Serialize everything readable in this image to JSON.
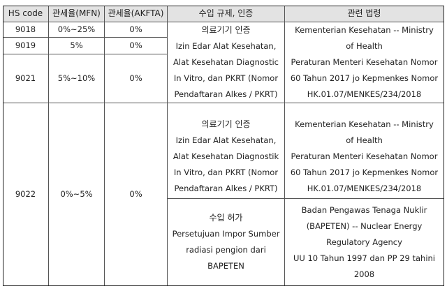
{
  "headers": [
    "HS code",
    "관세율(MFN)",
    "관세율(AKFTA)",
    "수입 규제, 인증",
    "관련 법령"
  ],
  "rows": [
    {
      "hs": "9018",
      "mfn": "0%~25%",
      "akfta": "0%"
    },
    {
      "hs": "9019",
      "mfn": "5%",
      "akfta": "0%"
    },
    {
      "hs": "9021",
      "mfn": "5%~10%",
      "akfta": "0%"
    },
    {
      "hs": "9022",
      "mfn": "0%~5%",
      "akfta": "0%"
    }
  ],
  "groups": [
    {
      "regulation": [
        "의료기기 인증",
        "Izin Edar Alat Kesehatan,",
        "Alat Kesehatan Diagnostic",
        "In Vitro, dan PKRT (Nomor",
        "Pendaftaran Alkes / PKRT)"
      ],
      "law": [
        "Kementerian Kesehatan -- Ministry",
        "of Health",
        "Peraturan Menteri Kesehatan Nomor",
        "60 Tahun 2017 jo Kepmenkes Nomor",
        "HK.01.07/MENKES/234/2018"
      ]
    },
    {
      "regulation": [
        "의료기기 인증",
        "Izin Edar Alat Kesehatan,",
        "Alat Kesehatan Diagnostik",
        "In Vitro, dan PKRT (Nomor",
        "Pendaftaran Alkes / PKRT)"
      ],
      "law": [
        "Kementerian Kesehatan -- Ministry",
        "of Health",
        "Peraturan Menteri Kesehatan Nomor",
        "60 Tahun 2017 jo Kepmenkes Nomor",
        "HK.01.07/MENKES/234/2018"
      ]
    },
    {
      "regulation": [
        "수입 허가",
        "Persetujuan Impor Sumber",
        "radiasi pengion dari",
        "BAPETEN"
      ],
      "law": [
        "Badan Pengawas Tenaga Nuklir",
        "(BAPETEN) -- Nuclear Energy",
        "Regulatory Agency",
        "UU 10 Tahun 1997 dan PP 29 tahini",
        "2008"
      ]
    }
  ],
  "colors": {
    "header_bg": "#e3e3e3",
    "border": "#555555"
  }
}
